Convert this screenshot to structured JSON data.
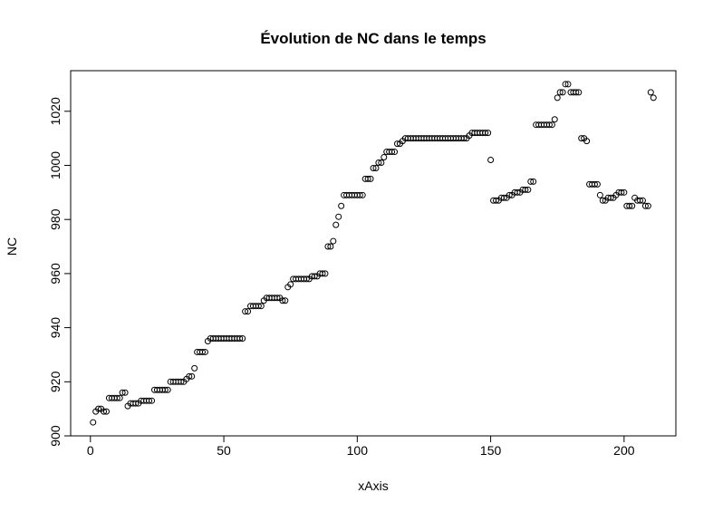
{
  "chart_data": {
    "type": "scatter",
    "title": "Évolution de NC dans le temps",
    "x_label": "xAxis",
    "y_label": "NC",
    "x": [
      1,
      2,
      3,
      4,
      5,
      6,
      7,
      8,
      9,
      10,
      11,
      12,
      13,
      14,
      15,
      16,
      17,
      18,
      19,
      20,
      21,
      22,
      23,
      24,
      25,
      26,
      27,
      28,
      29,
      30,
      31,
      32,
      33,
      34,
      35,
      36,
      37,
      38,
      39,
      40,
      41,
      42,
      43,
      44,
      45,
      46,
      47,
      48,
      49,
      50,
      51,
      52,
      53,
      54,
      55,
      56,
      57,
      58,
      59,
      60,
      61,
      62,
      63,
      64,
      65,
      66,
      67,
      68,
      69,
      70,
      71,
      72,
      73,
      74,
      75,
      76,
      77,
      78,
      79,
      80,
      81,
      82,
      83,
      84,
      85,
      86,
      87,
      88,
      89,
      90,
      91,
      92,
      93,
      94,
      95,
      96,
      97,
      98,
      99,
      100,
      101,
      102,
      103,
      104,
      105,
      106,
      107,
      108,
      109,
      110,
      111,
      112,
      113,
      114,
      115,
      116,
      117,
      118,
      119,
      120,
      121,
      122,
      123,
      124,
      125,
      126,
      127,
      128,
      129,
      130,
      131,
      132,
      133,
      134,
      135,
      136,
      137,
      138,
      139,
      140,
      141,
      142,
      143,
      144,
      145,
      146,
      147,
      148,
      149,
      150,
      151,
      152,
      153,
      154,
      155,
      156,
      157,
      158,
      159,
      160,
      161,
      162,
      163,
      164,
      165,
      166,
      167,
      168,
      169,
      170,
      171,
      172,
      173,
      174,
      175,
      176,
      177,
      178,
      179,
      180,
      181,
      182,
      183,
      184,
      185,
      186,
      187,
      188,
      189,
      190,
      191,
      192,
      193,
      194,
      195,
      196,
      197,
      198,
      199,
      200,
      201,
      202,
      203,
      204,
      205,
      206,
      207,
      208,
      209,
      210,
      211
    ],
    "values": [
      905,
      909,
      910,
      910,
      909,
      909,
      914,
      914,
      914,
      914,
      914,
      916,
      916,
      911,
      912,
      912,
      912,
      912,
      913,
      913,
      913,
      913,
      913,
      917,
      917,
      917,
      917,
      917,
      917,
      920,
      920,
      920,
      920,
      920,
      920,
      921,
      922,
      922,
      925,
      931,
      931,
      931,
      931,
      935,
      936,
      936,
      936,
      936,
      936,
      936,
      936,
      936,
      936,
      936,
      936,
      936,
      936,
      946,
      946,
      948,
      948,
      948,
      948,
      948,
      950,
      951,
      951,
      951,
      951,
      951,
      951,
      950,
      950,
      955,
      956,
      958,
      958,
      958,
      958,
      958,
      958,
      958,
      959,
      959,
      959,
      960,
      960,
      960,
      970,
      970,
      972,
      978,
      981,
      985,
      989,
      989,
      989,
      989,
      989,
      989,
      989,
      989,
      995,
      995,
      995,
      999,
      999,
      1001,
      1001,
      1003,
      1005,
      1005,
      1005,
      1005,
      1008,
      1008,
      1009,
      1010,
      1010,
      1010,
      1010,
      1010,
      1010,
      1010,
      1010,
      1010,
      1010,
      1010,
      1010,
      1010,
      1010,
      1010,
      1010,
      1010,
      1010,
      1010,
      1010,
      1010,
      1010,
      1010,
      1010,
      1011,
      1012,
      1012,
      1012,
      1012,
      1012,
      1012,
      1012,
      1002,
      987,
      987,
      987,
      988,
      988,
      988,
      989,
      989,
      990,
      990,
      990,
      991,
      991,
      991,
      994,
      994,
      1015,
      1015,
      1015,
      1015,
      1015,
      1015,
      1015,
      1017,
      1025,
      1027,
      1027,
      1030,
      1030,
      1027,
      1027,
      1027,
      1027,
      1010,
      1010,
      1009,
      993,
      993,
      993,
      993,
      989,
      987,
      987,
      988,
      988,
      988,
      989,
      990,
      990,
      990,
      985,
      985,
      985,
      988,
      987,
      987,
      987,
      985,
      985,
      1027,
      1025
    ],
    "color": "#000000",
    "xlim": [
      -7.4,
      219.4
    ],
    "ylim": [
      900,
      1035
    ],
    "xticks": [
      0,
      50,
      100,
      150,
      200
    ],
    "yticks": [
      900,
      920,
      940,
      960,
      980,
      1000,
      1020
    ]
  }
}
